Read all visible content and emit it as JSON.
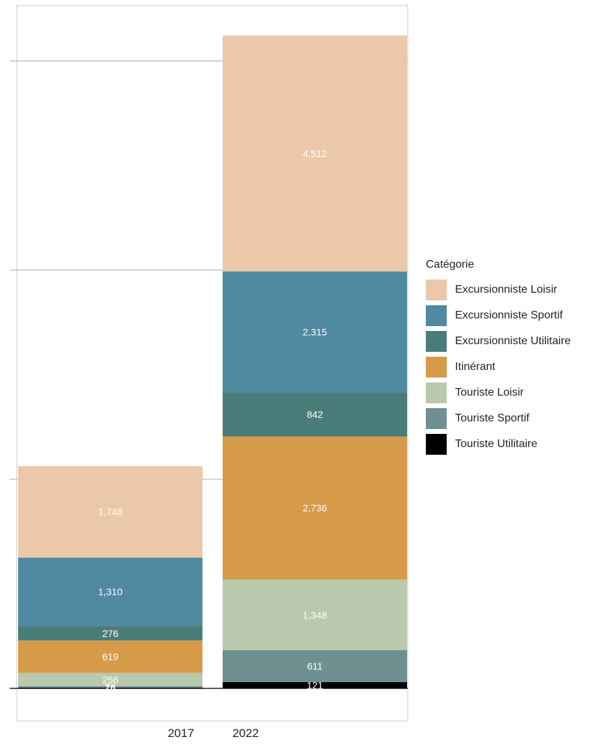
{
  "chart_data": {
    "type": "bar",
    "stacked": true,
    "categories": [
      "2017",
      "2022"
    ],
    "series": [
      {
        "name": "Touriste Utilitaire",
        "color": "#000000",
        "values": [
          14,
          121
        ]
      },
      {
        "name": "Touriste Sportif",
        "color": "#6f9090",
        "values": [
          26,
          611
        ]
      },
      {
        "name": "Touriste Loisir",
        "color": "#b9c9ae",
        "values": [
          256,
          1348
        ]
      },
      {
        "name": "Itinérant",
        "color": "#d69b48",
        "values": [
          619,
          2736
        ]
      },
      {
        "name": "Excursionniste Utilitaire",
        "color": "#4a7c7a",
        "values": [
          276,
          842
        ]
      },
      {
        "name": "Excursionniste Sportif",
        "color": "#4f8aa0",
        "values": [
          1310,
          2315
        ]
      },
      {
        "name": "Excursionniste Loisir",
        "color": "#ebc8a9",
        "values": [
          1748,
          4512
        ]
      }
    ],
    "data_labels": [
      [
        "14",
        "121"
      ],
      [
        "26",
        "611"
      ],
      [
        "256",
        "1,348"
      ],
      [
        "619",
        "2,736"
      ],
      [
        "276",
        "842"
      ],
      [
        "1,310",
        "2,315"
      ],
      [
        "1,748",
        "4,512"
      ]
    ],
    "xlabel": "",
    "ylabel": "",
    "ylim": [
      0,
      13200
    ],
    "gridlines": [
      0,
      4000,
      8000,
      12000
    ],
    "y_tick_labels_visible": false,
    "grid": true,
    "legend_position": "right"
  },
  "legend": {
    "title": "Catégorie",
    "items": [
      {
        "label": "Excursionniste Loisir",
        "color": "#ebc8a9"
      },
      {
        "label": "Excursionniste Sportif",
        "color": "#4f8aa0"
      },
      {
        "label": "Excursionniste Utilitaire",
        "color": "#4a7c7a"
      },
      {
        "label": "Itinérant",
        "color": "#d69b48"
      },
      {
        "label": "Touriste Loisir",
        "color": "#b9c9ae"
      },
      {
        "label": "Touriste Sportif",
        "color": "#6f9090"
      },
      {
        "label": "Touriste Utilitaire",
        "color": "#000000"
      }
    ]
  }
}
